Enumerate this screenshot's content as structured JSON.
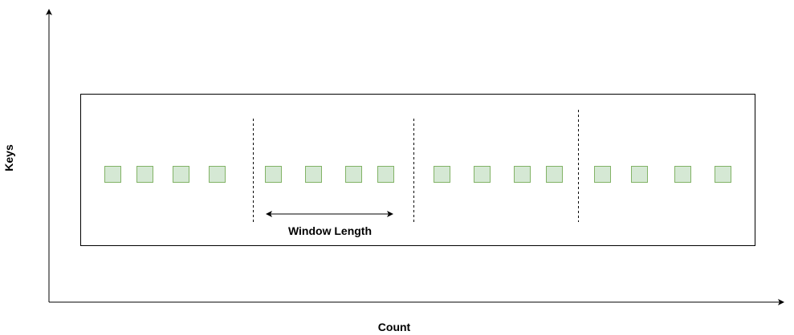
{
  "labels": {
    "y_axis": "Keys",
    "x_axis": "Count",
    "window_length": "Window Length"
  },
  "colors": {
    "box_fill": "#d5e8d4",
    "box_stroke": "#82b366",
    "line": "#000000"
  },
  "windows": [
    {
      "events": 4
    },
    {
      "events": 4
    },
    {
      "events": 4
    },
    {
      "events": 4
    }
  ]
}
